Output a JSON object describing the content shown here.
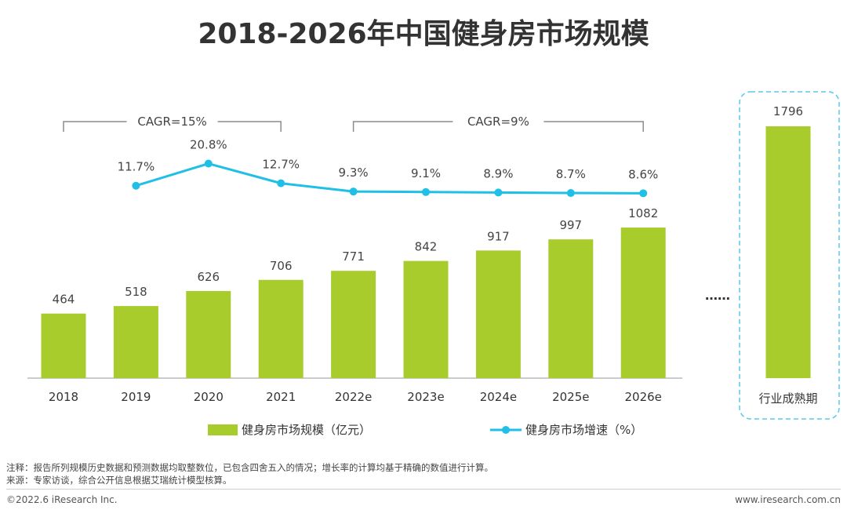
{
  "title": "2018-2026年中国健身房市场规模",
  "chart_data": {
    "type": "bar+line",
    "categories": [
      "2018",
      "2019",
      "2020",
      "2021",
      "2022e",
      "2023e",
      "2024e",
      "2025e",
      "2026e"
    ],
    "series": [
      {
        "name": "健身房市场规模（亿元）",
        "type": "bar",
        "values": [
          464,
          518,
          626,
          706,
          771,
          842,
          917,
          997,
          1082
        ],
        "labels": [
          "464",
          "518",
          "626",
          "706",
          "771",
          "842",
          "917",
          "997",
          "1082"
        ]
      },
      {
        "name": "健身房市场增速（%）",
        "type": "line",
        "values": [
          null,
          11.7,
          20.8,
          12.7,
          9.3,
          9.1,
          8.9,
          8.7,
          8.6
        ],
        "labels": [
          "",
          "11.7%",
          "20.8%",
          "12.7%",
          "9.3%",
          "9.1%",
          "8.9%",
          "8.7%",
          "8.6%"
        ]
      }
    ],
    "cagr": [
      {
        "label": "CAGR=15%",
        "from": "2018",
        "to": "2021"
      },
      {
        "label": "CAGR=9%",
        "from": "2022e",
        "to": "2026e"
      }
    ],
    "ellipsis": "……",
    "mature": {
      "category": "行业成熟期",
      "value": 1796,
      "label": "1796"
    },
    "colors": {
      "bar": "#a8cc2c",
      "line": "#1fbfe6",
      "bracket": "#8c8c8c",
      "dashed_box": "#5bc8e8",
      "axis": "#9a9a9a"
    }
  },
  "notes": {
    "note_line": "注释：报告所列规模历史数据和预测数据均取整数位，已包含四舍五入的情况；增长率的计算均基于精确的数值进行计算。",
    "source_line": "来源：专家访谈，综合公开信息根据艾瑞统计模型核算。"
  },
  "footer": {
    "copyright": "©2022.6 iResearch Inc.",
    "website": "www.iresearch.com.cn"
  }
}
